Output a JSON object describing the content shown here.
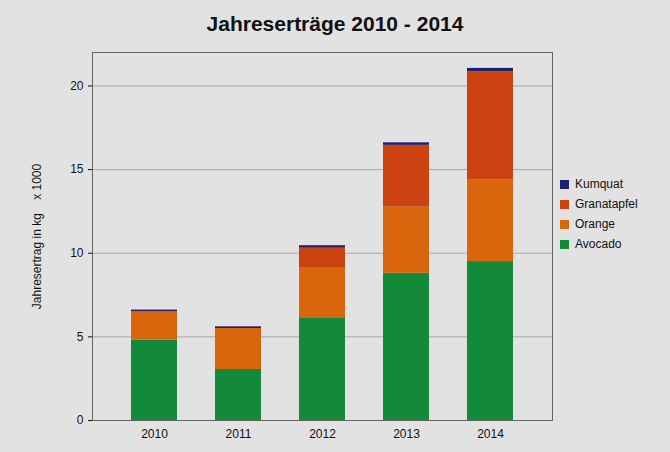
{
  "chart_data": {
    "type": "bar",
    "stacked": true,
    "title": "Jahreserträge 2010 - 2014",
    "y_label": "Jahresertrag in kg    x 1000",
    "categories": [
      "2010",
      "2011",
      "2012",
      "2013",
      "2014"
    ],
    "series": [
      {
        "name": "Avocado",
        "color": "#138a3a",
        "values": [
          4.8,
          3.05,
          6.1,
          8.8,
          9.5
        ]
      },
      {
        "name": "Orange",
        "color": "#d9660c",
        "values": [
          1.7,
          2.45,
          3.0,
          3.95,
          4.9
        ]
      },
      {
        "name": "Granatapfel",
        "color": "#cc4210",
        "values": [
          0,
          0,
          1.2,
          3.7,
          6.45
        ]
      },
      {
        "name": "Kumquat",
        "color": "#1b2370",
        "values": [
          0.1,
          0.1,
          0.15,
          0.15,
          0.2
        ]
      }
    ],
    "ylim": [
      0,
      22
    ],
    "yticks": [
      0,
      5,
      10,
      15,
      20
    ],
    "grid": true,
    "legend": "right"
  }
}
